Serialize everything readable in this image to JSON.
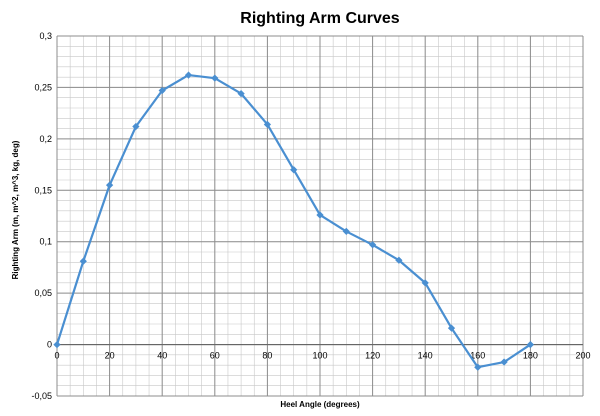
{
  "chart_data": {
    "type": "line",
    "title": "Righting Arm Curves",
    "xlabel": "Heel Angle (degrees)",
    "ylabel": "Righting Arm (m, m^2, m^3, kg, deg)",
    "xlim": [
      0,
      200
    ],
    "ylim": [
      -0.05,
      0.3
    ],
    "x_ticks": [
      0,
      20,
      40,
      60,
      80,
      100,
      120,
      140,
      160,
      180,
      200
    ],
    "y_ticks": [
      -0.05,
      0,
      0.05,
      0.1,
      0.15,
      0.2,
      0.25,
      0.3
    ],
    "x_tick_labels": [
      "0",
      "20",
      "40",
      "60",
      "80",
      "100",
      "120",
      "140",
      "160",
      "180",
      "200"
    ],
    "y_tick_labels": [
      "-0,05",
      "0",
      "0,05",
      "0,1",
      "0,15",
      "0,2",
      "0,25",
      "0,3"
    ],
    "x_minor_step": 5,
    "y_minor_step": 0.01,
    "grid": true,
    "legend": "none",
    "series_color": "#4a8fd1",
    "series": [
      {
        "x": [
          0,
          10,
          20,
          30,
          40,
          50,
          60,
          70,
          80,
          90,
          100,
          110,
          120,
          130,
          140,
          150,
          160,
          170,
          180
        ],
        "values": [
          0,
          0.081,
          0.155,
          0.212,
          0.247,
          0.262,
          0.259,
          0.244,
          0.214,
          0.17,
          0.126,
          0.11,
          0.097,
          0.082,
          0.06,
          0.016,
          -0.022,
          -0.017,
          0
        ]
      }
    ]
  }
}
